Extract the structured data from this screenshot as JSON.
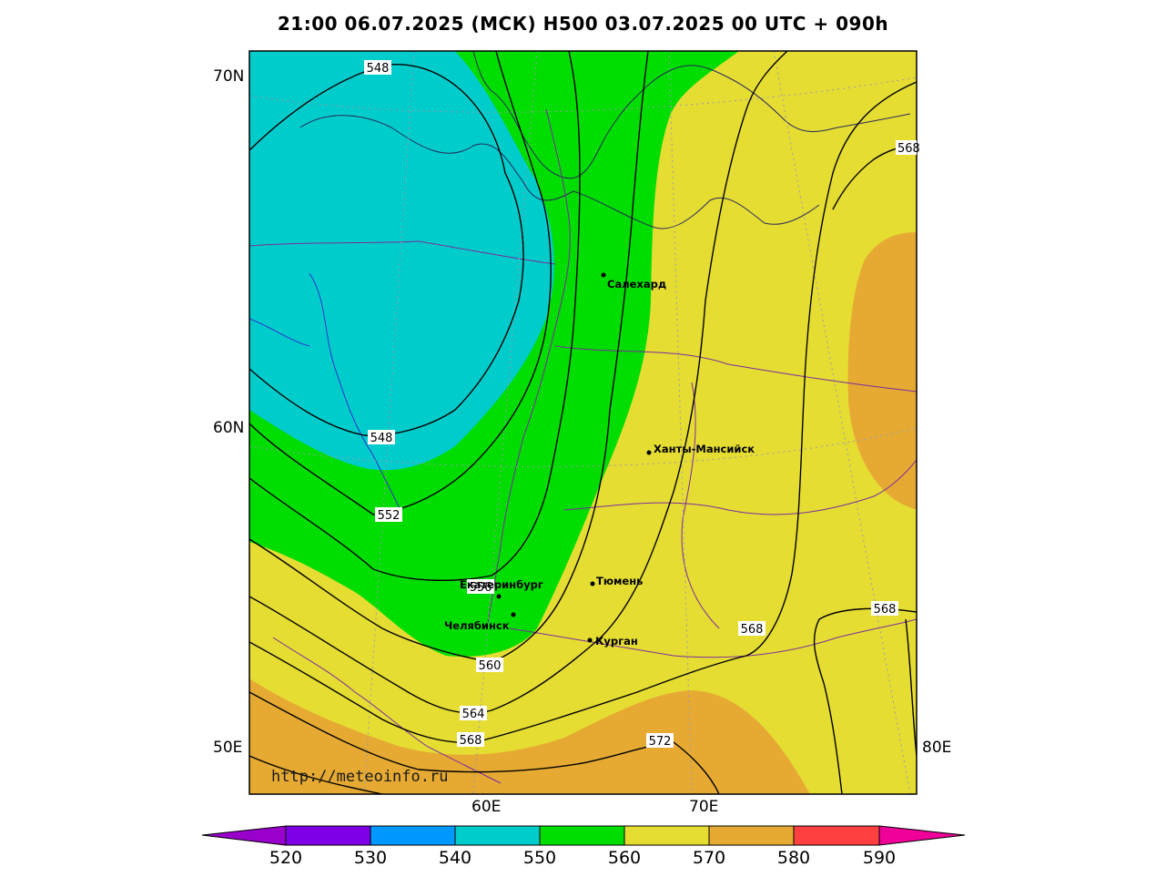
{
  "title": "21:00 06.07.2025 (МСК) H500  03.07.2025 00 UTC + 090h",
  "url": "http://meteoinfo.ru",
  "lat_labels": [
    "70N",
    "60N",
    "50E"
  ],
  "lon_labels": [
    "60E",
    "70E",
    "80E"
  ],
  "contour_labels": {
    "c548a": "548",
    "c548b": "548",
    "c552": "552",
    "c556": "556",
    "c560": "560",
    "c564": "564",
    "c568a": "568",
    "c568b": "568",
    "c568c": "568",
    "c568d": "568",
    "c572": "572"
  },
  "cities": [
    {
      "name": "Салехард"
    },
    {
      "name": "Ханты-Мансийск"
    },
    {
      "name": "Екатеринбург"
    },
    {
      "name": "Тюмень"
    },
    {
      "name": "Челябинск"
    },
    {
      "name": "Курган"
    }
  ],
  "colorbar": {
    "values": [
      "520",
      "530",
      "540",
      "550",
      "560",
      "570",
      "580",
      "590"
    ],
    "colors": [
      "#9a00cc",
      "#7f00e6",
      "#0099ff",
      "#00cccc",
      "#00dd00",
      "#e6dd33",
      "#e6aa33",
      "#ff4040",
      "#ee0099"
    ]
  },
  "fill_colors": {
    "540_550": "#00cccc",
    "550_560": "#00dd00",
    "560_570": "#e6dd33",
    "570_580": "#e6aa33"
  }
}
